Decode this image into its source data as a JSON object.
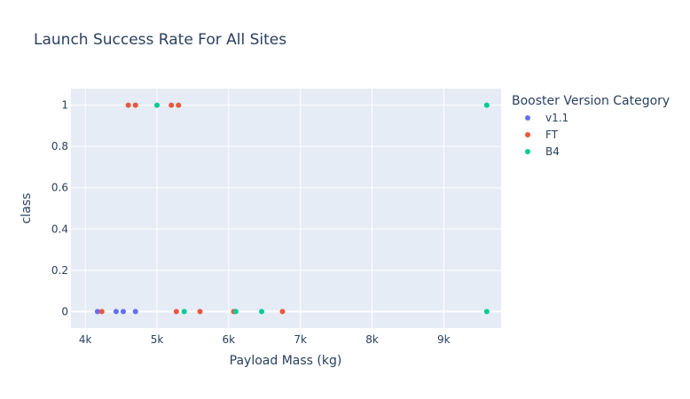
{
  "chart_data": {
    "type": "scatter",
    "title": "Launch Success Rate For All Sites",
    "xlabel": "Payload Mass (kg)",
    "ylabel": "class",
    "xlim": [
      3800,
      9800
    ],
    "ylim": [
      -0.08,
      1.08
    ],
    "x_ticks": [
      4000,
      5000,
      6000,
      7000,
      8000,
      9000
    ],
    "x_tick_labels": [
      "4k",
      "5k",
      "6k",
      "7k",
      "8k",
      "9k"
    ],
    "y_ticks": [
      0,
      0.2,
      0.4,
      0.6,
      0.8,
      1
    ],
    "y_tick_labels": [
      "0",
      "0.2",
      "0.4",
      "0.6",
      "0.8",
      "1"
    ],
    "grid": true,
    "legend_title": "Booster Version Category",
    "legend_position": "right",
    "background_color": "#E5ECF6",
    "series": [
      {
        "name": "v1.1",
        "color": "#636EFA",
        "points": [
          {
            "x": 4170,
            "y": 0
          },
          {
            "x": 4430,
            "y": 0
          },
          {
            "x": 4530,
            "y": 0
          },
          {
            "x": 4700,
            "y": 0
          }
        ]
      },
      {
        "name": "FT",
        "color": "#EF553B",
        "points": [
          {
            "x": 4600,
            "y": 1
          },
          {
            "x": 4700,
            "y": 1
          },
          {
            "x": 5200,
            "y": 1
          },
          {
            "x": 5300,
            "y": 1
          },
          {
            "x": 4230,
            "y": 0
          },
          {
            "x": 5270,
            "y": 0
          },
          {
            "x": 5600,
            "y": 0
          },
          {
            "x": 6070,
            "y": 0
          },
          {
            "x": 6750,
            "y": 0
          }
        ]
      },
      {
        "name": "B4",
        "color": "#00CC96",
        "points": [
          {
            "x": 5000,
            "y": 1
          },
          {
            "x": 9600,
            "y": 1
          },
          {
            "x": 5380,
            "y": 0
          },
          {
            "x": 6100,
            "y": 0
          },
          {
            "x": 6460,
            "y": 0
          },
          {
            "x": 9600,
            "y": 0
          }
        ]
      }
    ]
  }
}
